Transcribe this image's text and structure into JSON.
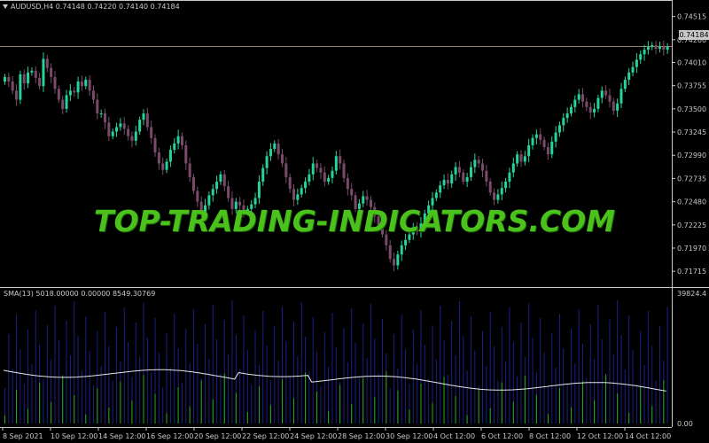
{
  "header": {
    "symbol_label": "AUDUSD,H4",
    "ohlc": "0.74148 0.74220 0.74140 0.74184"
  },
  "subwindow": {
    "label": "SMA(13) 5018.00000 0.00000 8549.30769",
    "max_label": "39824.4",
    "min_label": "0.00"
  },
  "watermark": "TOP-TRADING-INDICATORS.COM",
  "current_price": "0.74184",
  "chart_data": {
    "type": "candlestick",
    "price_axis": [
      "0.74515",
      "0.74260",
      "0.74010",
      "0.73755",
      "0.73500",
      "0.73245",
      "0.72990",
      "0.72735",
      "0.72480",
      "0.72225",
      "0.71970",
      "0.71715"
    ],
    "time_axis": [
      "8 Sep 2021",
      "10 Sep 12:00",
      "14 Sep 12:00",
      "16 Sep 12:00",
      "20 Sep 12:00",
      "22 Sep 12:00",
      "24 Sep 12:00",
      "28 Sep 12:00",
      "30 Sep 12:00",
      "4 Oct 12:00",
      "6 Oct 12:00",
      "8 Oct 12:00",
      "12 Oct 12:00",
      "14 Oct 12:00"
    ],
    "ylim": [
      0.716,
      0.7456
    ],
    "closes": [
      0.7385,
      0.738,
      0.737,
      0.736,
      0.7388,
      0.7378,
      0.739,
      0.7392,
      0.7384,
      0.7375,
      0.7405,
      0.7395,
      0.7385,
      0.7372,
      0.736,
      0.735,
      0.7365,
      0.737,
      0.7368,
      0.738,
      0.7375,
      0.7382,
      0.737,
      0.736,
      0.7345,
      0.7345,
      0.7335,
      0.732,
      0.7325,
      0.733,
      0.7334,
      0.7328,
      0.732,
      0.7315,
      0.7325,
      0.7338,
      0.7345,
      0.733,
      0.7318,
      0.7302,
      0.729,
      0.7283,
      0.7292,
      0.7305,
      0.7312,
      0.732,
      0.731,
      0.729,
      0.7275,
      0.726,
      0.7248,
      0.7235,
      0.7244,
      0.7255,
      0.7262,
      0.727,
      0.7278,
      0.7265,
      0.7252,
      0.724,
      0.7248,
      0.7244,
      0.7236,
      0.724,
      0.7245,
      0.7252,
      0.727,
      0.7285,
      0.7298,
      0.7306,
      0.7312,
      0.73,
      0.729,
      0.7275,
      0.7262,
      0.725,
      0.7256,
      0.7263,
      0.727,
      0.7278,
      0.729,
      0.7285,
      0.728,
      0.727,
      0.7274,
      0.7282,
      0.7298,
      0.729,
      0.7274,
      0.7262,
      0.7255,
      0.724,
      0.7246,
      0.7254,
      0.725,
      0.7242,
      0.7232,
      0.7222,
      0.7212,
      0.72,
      0.7185,
      0.7178,
      0.719,
      0.72,
      0.7206,
      0.7212,
      0.722,
      0.7215,
      0.7224,
      0.7235,
      0.7244,
      0.7252,
      0.7258,
      0.7266,
      0.7272,
      0.7268,
      0.7278,
      0.7286,
      0.728,
      0.727,
      0.7275,
      0.7286,
      0.7294,
      0.729,
      0.7282,
      0.727,
      0.7258,
      0.725,
      0.7256,
      0.7263,
      0.727,
      0.728,
      0.729,
      0.73,
      0.7292,
      0.7298,
      0.731,
      0.7318,
      0.7322,
      0.7316,
      0.7308,
      0.73,
      0.7314,
      0.7324,
      0.7332,
      0.734,
      0.7345,
      0.7352,
      0.736,
      0.7366,
      0.7358,
      0.7352,
      0.7346,
      0.735,
      0.7362,
      0.737,
      0.7365,
      0.7358,
      0.7348,
      0.7356,
      0.7372,
      0.7382,
      0.739,
      0.7396,
      0.7404,
      0.741,
      0.7415,
      0.7418,
      0.742,
      0.7416,
      0.7418,
      0.7415,
      0.7418
    ]
  }
}
